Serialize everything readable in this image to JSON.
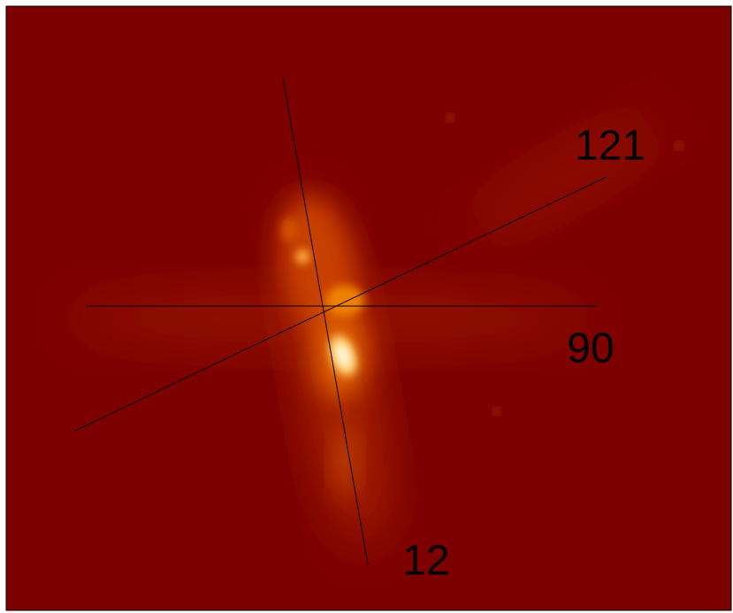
{
  "labels": [
    {
      "text": "121"
    },
    {
      "text": "90"
    },
    {
      "text": "12"
    }
  ]
}
